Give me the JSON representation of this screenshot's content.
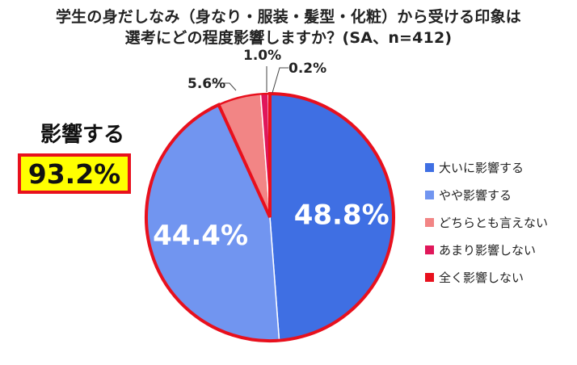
{
  "title_lines": [
    "学生の身だしなみ（身なり・服装・髪型・化粧）から受ける印象は",
    "選考にどの程度影響しますか？(SA、n=412)"
  ],
  "callout": {
    "label": "影響する",
    "value": "93.2%"
  },
  "chart_data": {
    "type": "pie",
    "title": "学生の身だしなみ（身なり・服装・髪型・化粧）から受ける印象は 選考にどの程度影響しますか？(SA、n=412)",
    "slices": [
      {
        "label": "大いに影響する",
        "value": 48.8,
        "display": "48.8%",
        "color": "#3f6fe3"
      },
      {
        "label": "やや影響する",
        "value": 44.4,
        "display": "44.4%",
        "color": "#7195f0"
      },
      {
        "label": "どちらとも言えない",
        "value": 5.6,
        "display": "5.6%",
        "color": "#f28585"
      },
      {
        "label": "あまり影響しない",
        "value": 1.0,
        "display": "1.0%",
        "color": "#e0175a"
      },
      {
        "label": "全く影響しない",
        "value": 0.2,
        "display": "0.2%",
        "color": "#e8101d"
      }
    ],
    "highlight_color": "#e8101d",
    "legend_position": "right"
  }
}
